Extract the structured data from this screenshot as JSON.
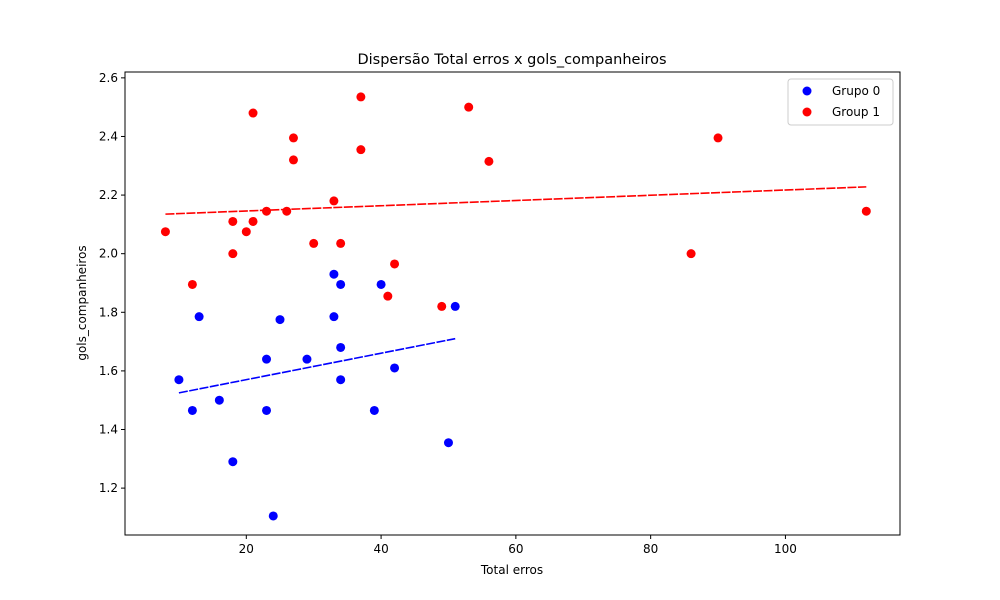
{
  "chart_data": {
    "type": "scatter",
    "title": "Dispersão Total erros x gols_companheiros",
    "xlabel": "Total erros",
    "ylabel": "gols_companheiros",
    "xlim": [
      2,
      117
    ],
    "ylim": [
      1.04,
      2.62
    ],
    "xticks": [
      20,
      40,
      60,
      80,
      100
    ],
    "yticks": [
      1.2,
      1.4,
      1.6,
      1.8,
      2.0,
      2.2,
      2.4,
      2.6
    ],
    "xtick_labels": [
      "20",
      "40",
      "60",
      "80",
      "100"
    ],
    "ytick_labels": [
      "1.2",
      "1.4",
      "1.6",
      "1.8",
      "2.0",
      "2.2",
      "2.4",
      "2.6"
    ],
    "grid": false,
    "legend_position": "top-right",
    "series": [
      {
        "name": "Grupo 0",
        "color": "#0000ff",
        "points": [
          [
            10,
            1.57
          ],
          [
            12,
            1.465
          ],
          [
            13,
            1.785
          ],
          [
            16,
            1.5
          ],
          [
            18,
            1.29
          ],
          [
            23,
            1.64
          ],
          [
            23,
            1.465
          ],
          [
            24,
            1.105
          ],
          [
            25,
            1.775
          ],
          [
            29,
            1.64
          ],
          [
            33,
            1.93
          ],
          [
            33,
            1.785
          ],
          [
            34,
            1.895
          ],
          [
            34,
            1.68
          ],
          [
            34,
            1.57
          ],
          [
            39,
            1.465
          ],
          [
            40,
            1.895
          ],
          [
            42,
            1.61
          ],
          [
            50,
            1.355
          ],
          [
            51,
            1.82
          ]
        ],
        "trend": {
          "x": [
            10,
            51
          ],
          "y": [
            1.525,
            1.71
          ]
        }
      },
      {
        "name": "Group 1",
        "color": "#ff0000",
        "points": [
          [
            8,
            2.075
          ],
          [
            12,
            1.895
          ],
          [
            18,
            2.11
          ],
          [
            18,
            2.0
          ],
          [
            20,
            2.075
          ],
          [
            21,
            2.48
          ],
          [
            21,
            2.11
          ],
          [
            23,
            2.145
          ],
          [
            26,
            2.145
          ],
          [
            27,
            2.395
          ],
          [
            27,
            2.32
          ],
          [
            30,
            2.035
          ],
          [
            33,
            2.18
          ],
          [
            34,
            2.035
          ],
          [
            37,
            2.535
          ],
          [
            37,
            2.355
          ],
          [
            41,
            1.855
          ],
          [
            42,
            1.965
          ],
          [
            49,
            1.82
          ],
          [
            53,
            2.5
          ],
          [
            56,
            2.315
          ],
          [
            86,
            2.0
          ],
          [
            90,
            2.395
          ],
          [
            112,
            2.145
          ]
        ],
        "trend": {
          "x": [
            8,
            112
          ],
          "y": [
            2.135,
            2.228
          ]
        }
      }
    ]
  }
}
